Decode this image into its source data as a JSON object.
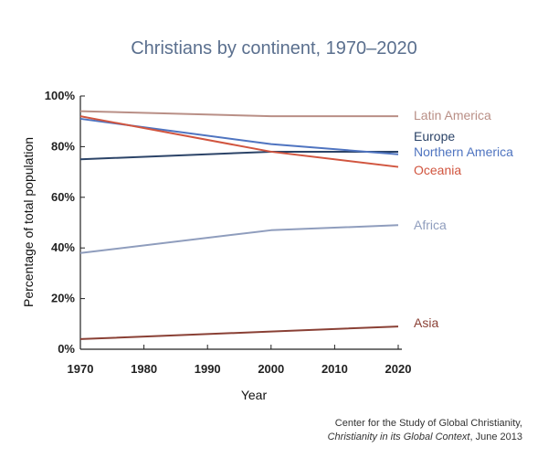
{
  "chart_data": {
    "type": "line",
    "title": "Christians by continent, 1970–2020",
    "xlabel": "Year",
    "ylabel": "Percentage of total population",
    "x": [
      1970,
      2000,
      2020
    ],
    "xticks": [
      "1970",
      "1980",
      "1990",
      "2000",
      "2010",
      "2020"
    ],
    "xlim": [
      1970,
      2020
    ],
    "yticks": [
      "0%",
      "20%",
      "40%",
      "60%",
      "80%",
      "100%"
    ],
    "ylim": [
      0,
      100
    ],
    "grid": false,
    "legend": "direct labels at right",
    "series": [
      {
        "name": "Latin America",
        "values": [
          94,
          92,
          92
        ],
        "color": "#b98f86"
      },
      {
        "name": "Europe",
        "values": [
          75,
          78,
          78
        ],
        "color": "#2c4468"
      },
      {
        "name": "Northern America",
        "values": [
          91,
          81,
          77
        ],
        "color": "#4f74c0"
      },
      {
        "name": "Oceania",
        "values": [
          92,
          78,
          72
        ],
        "color": "#d1553f"
      },
      {
        "name": "Africa",
        "values": [
          38,
          47,
          49
        ],
        "color": "#8f9dbd"
      },
      {
        "name": "Asia",
        "values": [
          4,
          7,
          9
        ],
        "color": "#8a4035"
      }
    ]
  },
  "source": {
    "line1": "Center for the Study of Global Christianity,",
    "line2_italic": "Christianity in its Global Context",
    "line2_rest": ", June 2013"
  }
}
